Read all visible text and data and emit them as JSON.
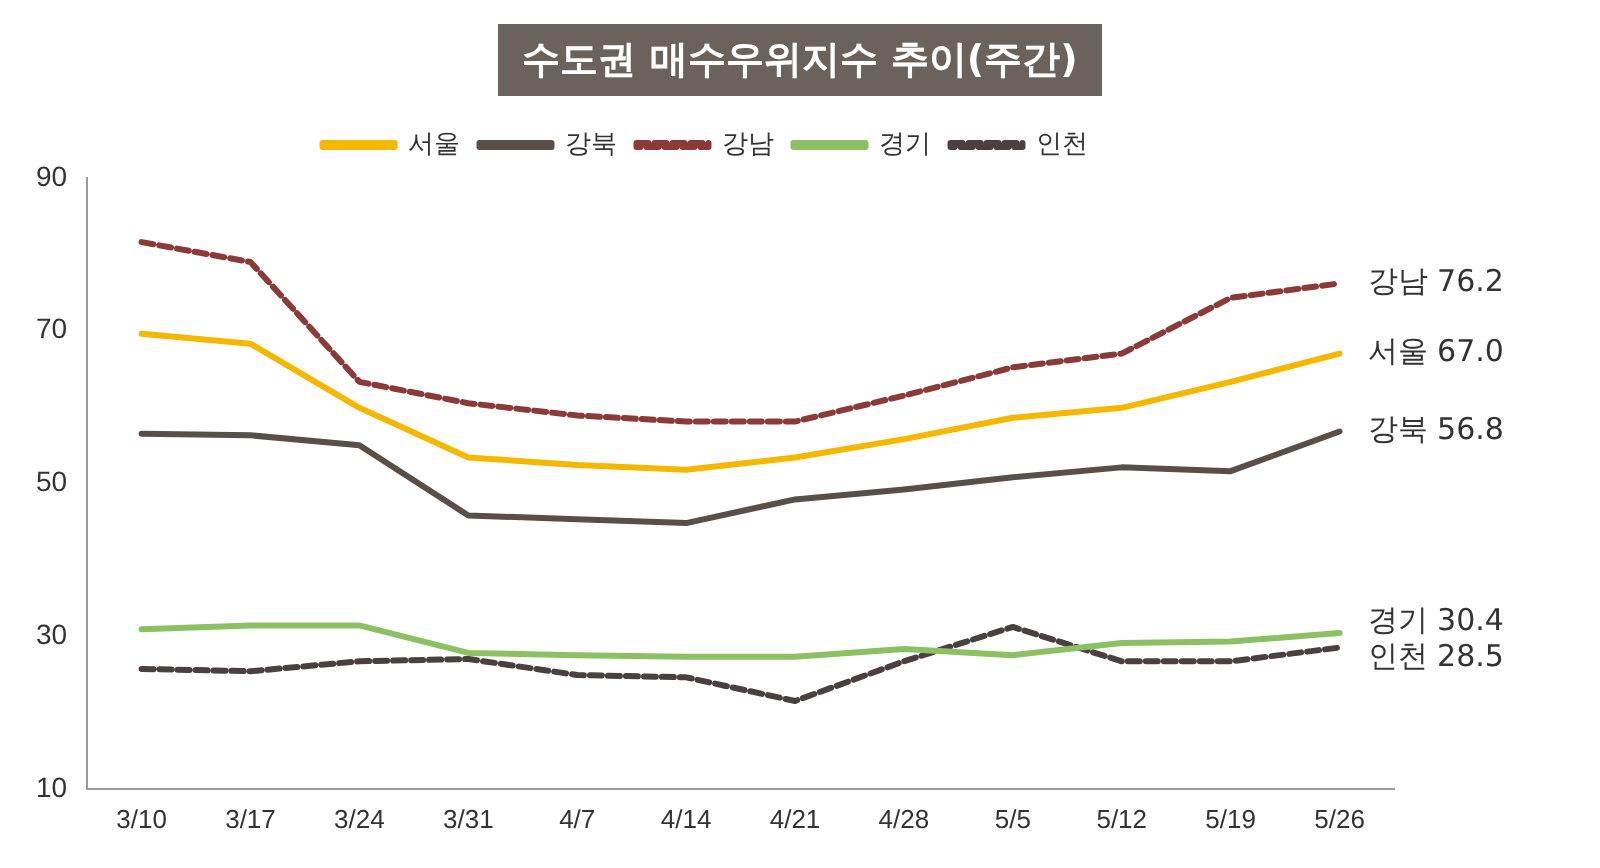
{
  "chart_data": {
    "type": "line",
    "title": "수도권 매수우위지수 추이(주간)",
    "categories": [
      "3/10",
      "3/17",
      "3/24",
      "3/31",
      "4/7",
      "4/14",
      "4/21",
      "4/28",
      "5/5",
      "5/12",
      "5/19",
      "5/26"
    ],
    "series": [
      {
        "name": "서울",
        "color": "#f5b800",
        "line_style": "solid",
        "values": [
          69.6,
          68.3,
          59.9,
          53.4,
          52.4,
          51.8,
          53.4,
          55.8,
          58.6,
          59.9,
          63.3,
          67.0
        ]
      },
      {
        "name": "강북",
        "color": "#5a4f48",
        "line_style": "solid",
        "values": [
          56.5,
          56.3,
          55.0,
          45.8,
          45.3,
          44.8,
          47.9,
          49.2,
          50.8,
          52.1,
          51.6,
          56.8
        ]
      },
      {
        "name": "강남",
        "color": "#8b3a3a",
        "line_style": "dashed",
        "values": [
          81.6,
          79.0,
          63.3,
          60.5,
          58.9,
          58.1,
          58.1,
          61.5,
          65.2,
          67.0,
          74.3,
          76.2
        ]
      },
      {
        "name": "경기",
        "color": "#8cc063",
        "line_style": "solid",
        "values": [
          30.9,
          31.4,
          31.4,
          27.8,
          27.5,
          27.3,
          27.3,
          28.3,
          27.5,
          29.1,
          29.3,
          30.4
        ]
      },
      {
        "name": "인천",
        "color": "#4a4040",
        "line_style": "dashed",
        "values": [
          25.7,
          25.4,
          26.7,
          27.0,
          24.9,
          24.6,
          21.5,
          26.7,
          31.2,
          26.7,
          26.7,
          28.5
        ]
      }
    ],
    "ylim": [
      10,
      90
    ],
    "yticks": [
      10,
      30,
      50,
      70,
      90
    ],
    "grid": false,
    "legend": "top",
    "marker": "none",
    "annotations": [
      {
        "text": "강남 76.2",
        "x": "5/26",
        "y": 76.2
      },
      {
        "text": "서울 67.0",
        "x": "5/26",
        "y": 67.0
      },
      {
        "text": "강북 56.8",
        "x": "5/26",
        "y": 56.8
      },
      {
        "text": "경기 30.4",
        "x": "5/26",
        "y": 30.4
      },
      {
        "text": "인천 28.5",
        "x": "5/26",
        "y": 28.5
      }
    ]
  }
}
